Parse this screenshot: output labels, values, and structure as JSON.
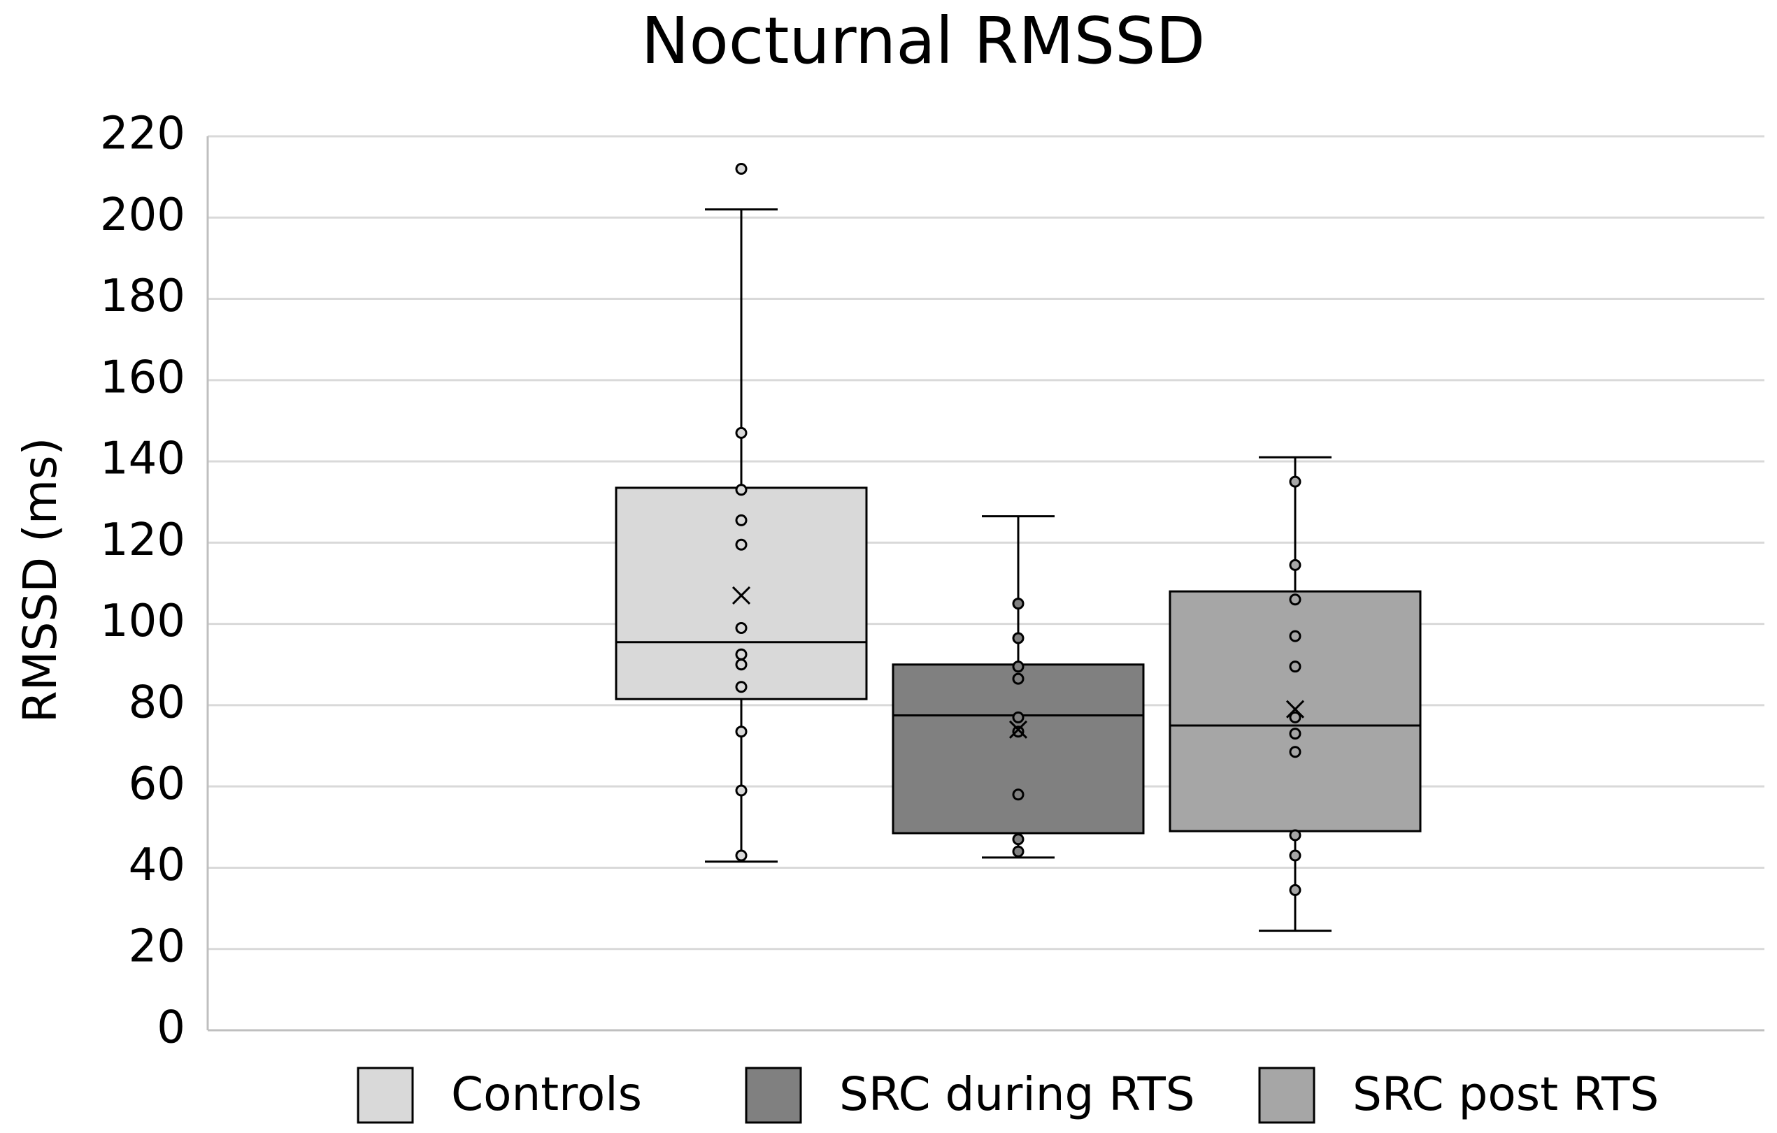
{
  "chart_data": {
    "type": "boxplot",
    "title": "Nocturnal RMSSD",
    "xlabel": "",
    "ylabel": "RMSSD (ms)",
    "ylim": [
      0,
      220
    ],
    "yticks": [
      0,
      20,
      40,
      60,
      80,
      100,
      120,
      140,
      160,
      180,
      200,
      220
    ],
    "grid": true,
    "legend_position": "bottom",
    "series": [
      {
        "name": "Controls",
        "color": "#d9d9d9",
        "whisker_low": 41.5,
        "q1": 81.5,
        "median": 95.5,
        "q3": 133.5,
        "whisker_high": 202,
        "mean": 107,
        "points": [
          212,
          147,
          133,
          125.5,
          119.5,
          99,
          92.5,
          90,
          84.5,
          73.5,
          59,
          43
        ]
      },
      {
        "name": "SRC during RTS",
        "color": "#808080",
        "whisker_low": 42.5,
        "q1": 48.5,
        "median": 77.5,
        "q3": 90,
        "whisker_high": 126.5,
        "mean": 74,
        "points": [
          105,
          96.5,
          89.5,
          86.5,
          77,
          73.5,
          58,
          47,
          44
        ]
      },
      {
        "name": "SRC post RTS",
        "color": "#a6a6a6",
        "whisker_low": 24.5,
        "q1": 49,
        "median": 75,
        "q3": 108,
        "whisker_high": 141,
        "mean": 79,
        "points": [
          135,
          114.5,
          106,
          97,
          89.5,
          77,
          73,
          68.5,
          48,
          43,
          34.5
        ]
      }
    ]
  }
}
